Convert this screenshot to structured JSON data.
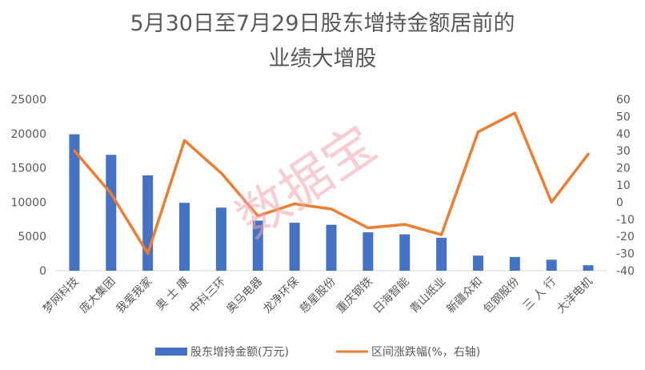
{
  "chart_data": {
    "type": "bar",
    "title_lines": [
      "5月30日至7月29日股东增持金额居前的",
      "业绩大增股"
    ],
    "categories": [
      "梦网科技",
      "庞大集团",
      "我爱我家",
      "奥 士 康",
      "中科三环",
      "奥马电器",
      "龙净环保",
      "慈星股份",
      "重庆钢铁",
      "日海智能",
      "青山纸业",
      "新疆众和",
      "包钢股份",
      "三 人 行",
      "大洋电机"
    ],
    "series": [
      {
        "name": "股东增持金额(万元)",
        "axis": "left",
        "kind": "bar",
        "color": "#4472C4",
        "values": [
          19900,
          16900,
          13900,
          9900,
          9200,
          7300,
          7000,
          6700,
          5600,
          5300,
          4800,
          2200,
          2000,
          1600,
          800
        ]
      },
      {
        "name": "区间涨跌幅(%，右轴)",
        "axis": "right",
        "kind": "line",
        "color": "#ED7D31",
        "values": [
          30,
          5,
          -30,
          36,
          17,
          -8,
          -1,
          -4,
          -15,
          -13,
          -19,
          41,
          52,
          0,
          28
        ]
      }
    ],
    "y_left": {
      "min": 0,
      "max": 25000,
      "ticks": [
        "0",
        "5000",
        "10000",
        "15000",
        "20000",
        "25000"
      ]
    },
    "y_right": {
      "min": -40,
      "max": 60,
      "ticks": [
        "-40",
        "-30",
        "-20",
        "-10",
        "0",
        "10",
        "20",
        "30",
        "40",
        "50",
        "60"
      ]
    },
    "grid": false,
    "legend_position": "bottom"
  },
  "watermark": "数据宝"
}
